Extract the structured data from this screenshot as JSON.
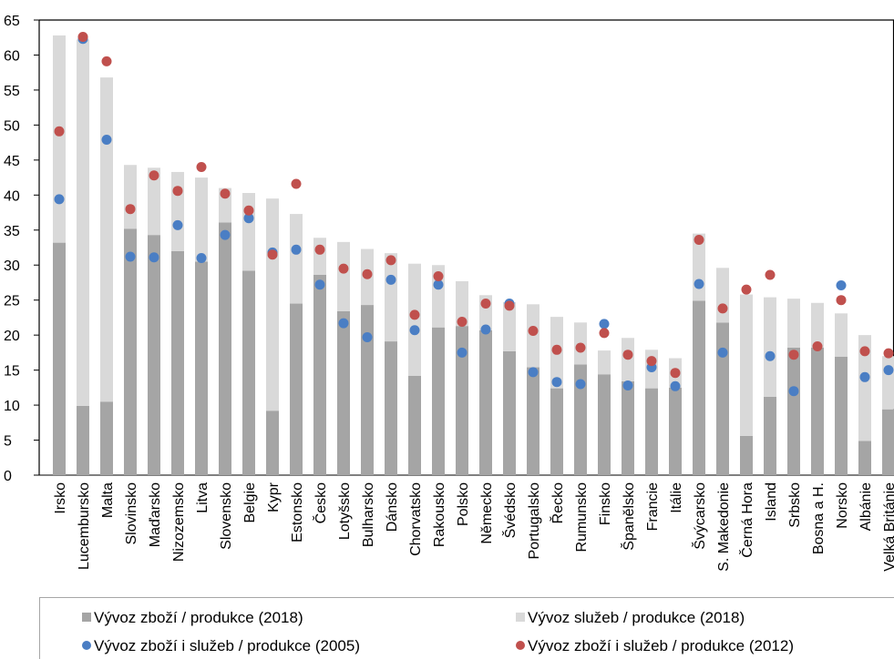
{
  "chart_data": {
    "type": "bar",
    "stacked": true,
    "ylim": [
      0,
      65
    ],
    "yticks": [
      0,
      5,
      10,
      15,
      20,
      25,
      30,
      35,
      40,
      45,
      50,
      55,
      60,
      65
    ],
    "grid": false,
    "legend_position": "bottom",
    "categories": [
      "Irsko",
      "Lucembursko",
      "Malta",
      "Slovinsko",
      "Maďarsko",
      "Nizozemsko",
      "Litva",
      "Slovensko",
      "Belgie",
      "Kypr",
      "Estonsko",
      "Česko",
      "Lotyšsko",
      "Bulharsko",
      "Dánsko",
      "Chorvatsko",
      "Rakousko",
      "Polsko",
      "Německo",
      "Švédsko",
      "Portugalsko",
      "Řecko",
      "Rumunsko",
      "Finsko",
      "Španělsko",
      "Francie",
      "Itálie",
      "Švýcarsko",
      "S. Makedonie",
      "Černá Hora",
      "Island",
      "Srbsko",
      "Bosna a H.",
      "Norsko",
      "Albánie",
      "Velká Británie"
    ],
    "series": [
      {
        "name": "Vývoz zboží  / produkce (2018)",
        "kind": "bar",
        "color": "#a5a5a5",
        "values": [
          33.2,
          9.9,
          10.5,
          35.2,
          34.3,
          32.0,
          30.5,
          36.1,
          29.2,
          9.2,
          24.5,
          28.6,
          23.4,
          24.3,
          19.1,
          14.2,
          21.1,
          21.3,
          20.7,
          17.7,
          15.4,
          12.4,
          15.8,
          14.4,
          13.4,
          12.4,
          12.5,
          24.9,
          21.8,
          5.6,
          11.2,
          18.2,
          18.2,
          16.9,
          4.9,
          9.4
        ]
      },
      {
        "name": "Vývoz služeb  / produkce (2018)",
        "kind": "bar",
        "color": "#d9d9d9",
        "values": [
          29.6,
          52.3,
          46.3,
          9.1,
          9.6,
          11.3,
          12.0,
          4.9,
          11.1,
          30.3,
          12.8,
          5.3,
          9.9,
          8.0,
          12.6,
          16.0,
          8.9,
          6.4,
          5.0,
          7.0,
          9.0,
          10.2,
          6.0,
          3.4,
          6.2,
          5.5,
          4.2,
          9.6,
          7.8,
          20.2,
          14.2,
          7.0,
          6.4,
          6.2,
          15.1,
          7.6
        ]
      },
      {
        "name": "Vývoz zboží i služeb / produkce (2005)",
        "kind": "dot",
        "color": "#4a7ec4",
        "values": [
          39.4,
          62.3,
          47.9,
          31.2,
          31.1,
          35.7,
          31.0,
          34.3,
          36.7,
          31.8,
          32.2,
          27.2,
          21.7,
          19.7,
          27.9,
          20.7,
          27.2,
          17.5,
          20.8,
          24.5,
          14.7,
          13.3,
          13.0,
          21.6,
          12.8,
          15.4,
          12.7,
          27.3,
          17.5,
          null,
          17.0,
          12.0,
          null,
          27.1,
          14.0,
          15.0
        ]
      },
      {
        "name": "Vývoz zboží i služeb / produkce (2012)",
        "kind": "dot",
        "color": "#c0504d",
        "values": [
          49.1,
          62.6,
          59.1,
          38.0,
          42.8,
          40.6,
          44.0,
          40.2,
          37.8,
          31.5,
          41.6,
          32.2,
          29.5,
          28.7,
          30.7,
          22.9,
          28.4,
          21.9,
          24.5,
          24.2,
          20.6,
          17.9,
          18.2,
          20.3,
          17.2,
          16.3,
          14.6,
          33.6,
          23.8,
          26.5,
          28.6,
          17.2,
          18.4,
          25.0,
          17.7,
          17.4
        ]
      }
    ]
  }
}
